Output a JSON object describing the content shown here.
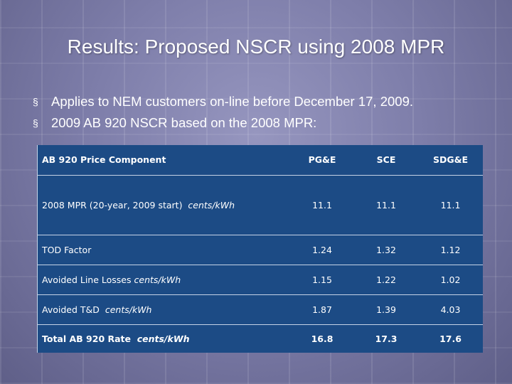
{
  "slide": {
    "title": "Results:  Proposed NSCR using 2008 MPR",
    "bullets": [
      {
        "mark": "§",
        "text": "Applies to NEM customers on-line before December 17, 2009."
      },
      {
        "mark": "§",
        "text": "2009 AB 920 NSCR based on the 2008 MPR:"
      }
    ]
  },
  "table": {
    "headers": [
      "AB 920 Price Component",
      "PG&E",
      "SCE",
      "SDG&E"
    ],
    "rows": [
      {
        "label": "2008 MPR (20-year, 2009 start)",
        "unit": "cents/kWh",
        "values": [
          "11.1",
          "11.1",
          "11.1"
        ]
      },
      {
        "label": "TOD Factor",
        "unit": "",
        "values": [
          "1.24",
          "1.32",
          "1.12"
        ]
      },
      {
        "label": "Avoided Line Losses",
        "unit": "cents/kWh",
        "values": [
          "1.15",
          "1.22",
          "1.02"
        ]
      },
      {
        "label": "Avoided T&D",
        "unit": "cents/kWh",
        "values": [
          "1.87",
          "1.39",
          "4.03"
        ]
      },
      {
        "label": "Total AB 920 Rate",
        "unit": "cents/kWh",
        "values": [
          "16.8",
          "17.3",
          "17.6"
        ]
      }
    ]
  }
}
